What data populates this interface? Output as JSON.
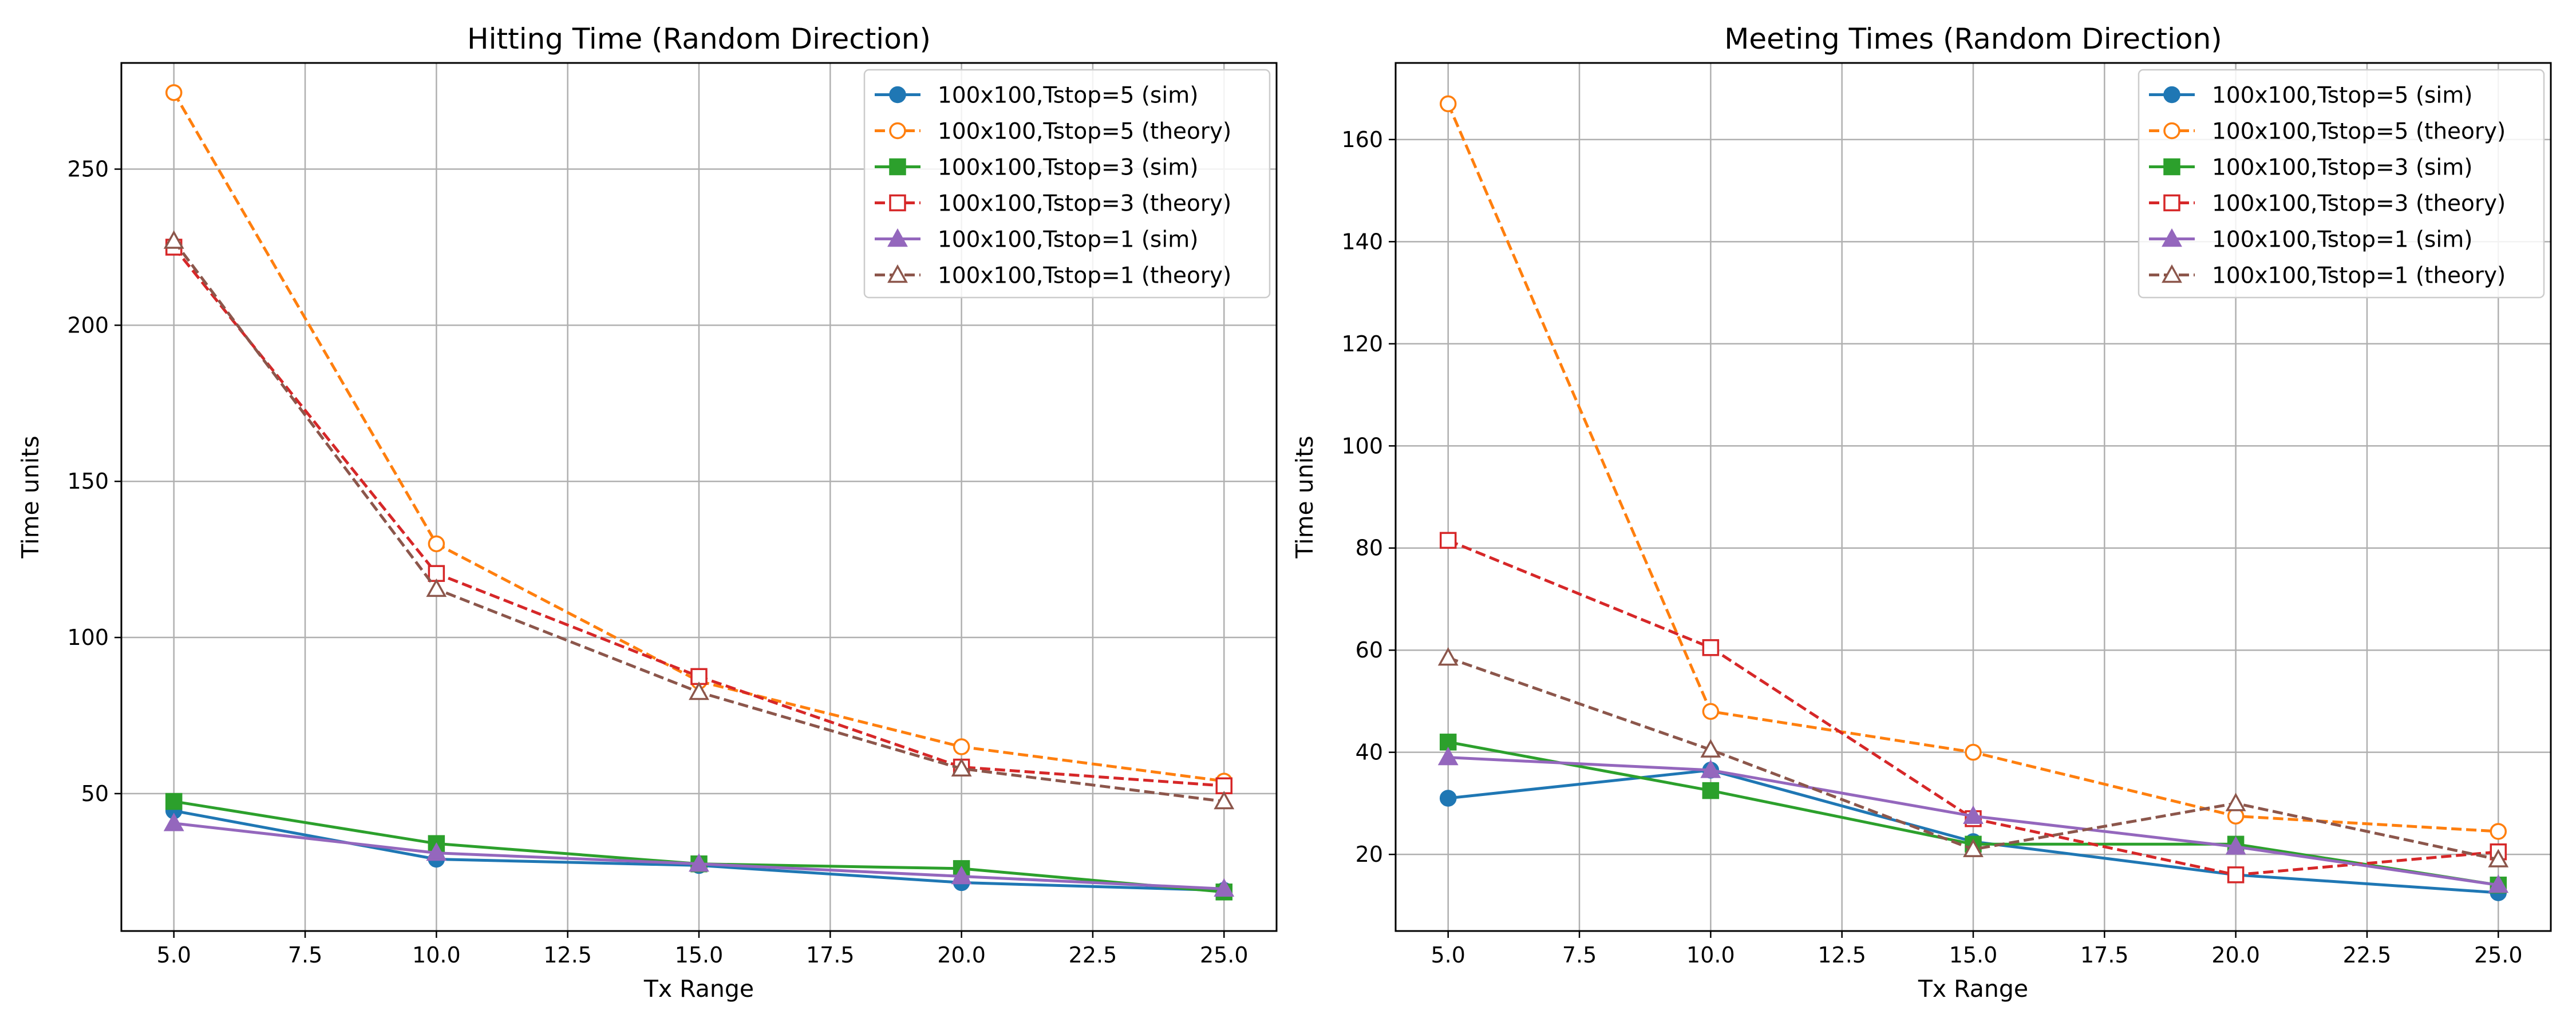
{
  "chart_data": [
    {
      "type": "line",
      "title": "Hitting Time (Random Direction)",
      "xlabel": "Tx Range",
      "ylabel": "Time units",
      "xlim": [
        4,
        26
      ],
      "ylim": [
        6,
        284
      ],
      "xticks": [
        "5.0",
        "7.5",
        "10.0",
        "12.5",
        "15.0",
        "17.5",
        "20.0",
        "22.5",
        "25.0"
      ],
      "yticks": [
        "50",
        "100",
        "150",
        "200",
        "250"
      ],
      "grid": true,
      "legend_position": "top-right",
      "x": [
        5,
        10,
        15,
        20,
        25
      ],
      "series": [
        {
          "name": "100x100,Tstop=5 (sim)",
          "values": [
            44.5,
            29.0,
            27.0,
            21.5,
            19.0
          ],
          "color": "#1f77b4",
          "dash": "solid",
          "marker": "circle",
          "filled": true
        },
        {
          "name": "100x100,Tstop=5 (theory)",
          "values": [
            274.5,
            130.0,
            86.0,
            65.0,
            54.0
          ],
          "color": "#ff7f0e",
          "dash": "dashed",
          "marker": "circle",
          "filled": false
        },
        {
          "name": "100x100,Tstop=3 (sim)",
          "values": [
            47.5,
            34.0,
            27.5,
            26.0,
            18.5
          ],
          "color": "#2ca02c",
          "dash": "solid",
          "marker": "square",
          "filled": true
        },
        {
          "name": "100x100,Tstop=3 (theory)",
          "values": [
            225.0,
            120.5,
            87.5,
            58.5,
            52.5
          ],
          "color": "#d62728",
          "dash": "dashed",
          "marker": "square",
          "filled": false
        },
        {
          "name": "100x100,Tstop=1 (sim)",
          "values": [
            40.5,
            31.0,
            27.5,
            23.5,
            19.5
          ],
          "color": "#9467bd",
          "dash": "solid",
          "marker": "triangle",
          "filled": true
        },
        {
          "name": "100x100,Tstop=1 (theory)",
          "values": [
            227.0,
            115.5,
            82.5,
            58.0,
            47.5
          ],
          "color": "#8c564b",
          "dash": "dashed",
          "marker": "triangle",
          "filled": false
        }
      ]
    },
    {
      "type": "line",
      "title": "Meeting Times (Random Direction)",
      "xlabel": "Tx Range",
      "ylabel": "Time units",
      "xlim": [
        4,
        26
      ],
      "ylim": [
        5,
        175
      ],
      "xticks": [
        "5.0",
        "7.5",
        "10.0",
        "12.5",
        "15.0",
        "17.5",
        "20.0",
        "22.5",
        "25.0"
      ],
      "yticks": [
        "20",
        "40",
        "60",
        "80",
        "100",
        "120",
        "140",
        "160"
      ],
      "grid": true,
      "legend_position": "top-right",
      "x": [
        5,
        10,
        15,
        20,
        25
      ],
      "series": [
        {
          "name": "100x100,Tstop=5 (sim)",
          "values": [
            31.0,
            36.5,
            22.5,
            16.0,
            12.5
          ],
          "color": "#1f77b4",
          "dash": "solid",
          "marker": "circle",
          "filled": true
        },
        {
          "name": "100x100,Tstop=5 (theory)",
          "values": [
            167.0,
            48.0,
            40.0,
            27.5,
            24.5
          ],
          "color": "#ff7f0e",
          "dash": "dashed",
          "marker": "circle",
          "filled": false
        },
        {
          "name": "100x100,Tstop=3 (sim)",
          "values": [
            42.0,
            32.5,
            22.0,
            22.0,
            14.0
          ],
          "color": "#2ca02c",
          "dash": "solid",
          "marker": "square",
          "filled": true
        },
        {
          "name": "100x100,Tstop=3 (theory)",
          "values": [
            81.5,
            60.5,
            27.0,
            16.0,
            20.5
          ],
          "color": "#d62728",
          "dash": "dashed",
          "marker": "square",
          "filled": false
        },
        {
          "name": "100x100,Tstop=1 (sim)",
          "values": [
            39.0,
            36.5,
            27.5,
            21.5,
            14.0
          ],
          "color": "#9467bd",
          "dash": "solid",
          "marker": "triangle",
          "filled": true
        },
        {
          "name": "100x100,Tstop=1 (theory)",
          "values": [
            58.5,
            40.5,
            21.0,
            30.0,
            19.0
          ],
          "color": "#8c564b",
          "dash": "dashed",
          "marker": "triangle",
          "filled": false
        }
      ]
    }
  ]
}
